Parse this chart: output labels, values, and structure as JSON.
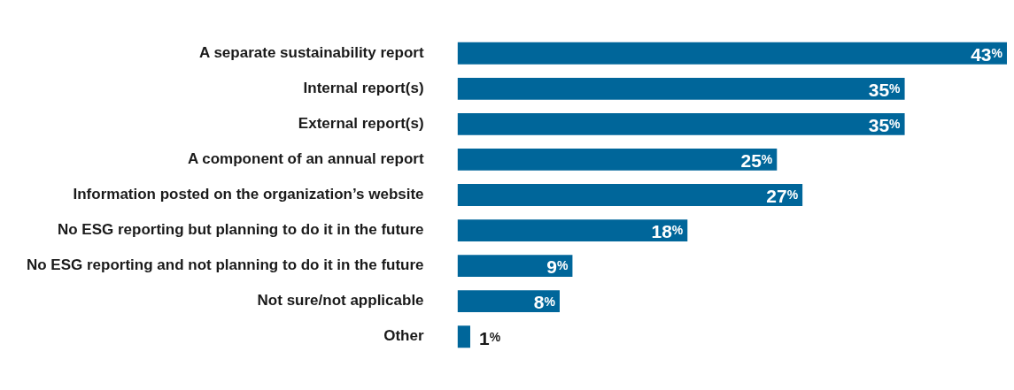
{
  "chart_data": {
    "type": "bar",
    "orientation": "horizontal",
    "categories": [
      "A separate sustainability report",
      "Internal report(s)",
      "External report(s)",
      "A component of an annual report",
      "Information posted on the organization’s website",
      "No ESG reporting but planning to do it in the future",
      "No ESG reporting and not planning to do it in the future",
      "Not sure/not applicable",
      "Other"
    ],
    "values": [
      43,
      35,
      35,
      25,
      27,
      18,
      9,
      8,
      1
    ],
    "value_labels": [
      "43%",
      "35%",
      "35%",
      "25%",
      "27%",
      "18%",
      "9%",
      "8%",
      "1%"
    ],
    "color": "#00669a"
  }
}
